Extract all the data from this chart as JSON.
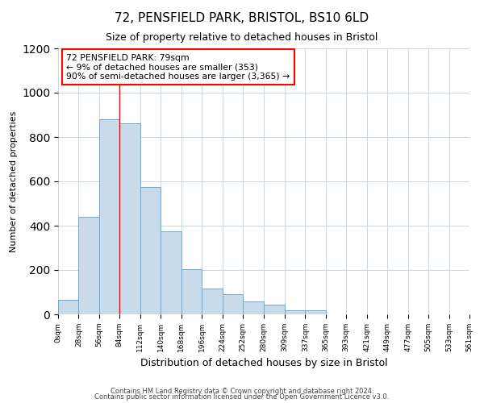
{
  "title": "72, PENSFIELD PARK, BRISTOL, BS10 6LD",
  "subtitle": "Size of property relative to detached houses in Bristol",
  "xlabel": "Distribution of detached houses by size in Bristol",
  "ylabel": "Number of detached properties",
  "bar_color": "#c9daea",
  "bar_edge_color": "#6aaad4",
  "bin_edges": [
    0,
    28,
    56,
    84,
    112,
    140,
    168,
    196,
    224,
    252,
    280,
    309,
    337,
    365,
    393,
    421,
    449,
    477,
    505,
    533,
    561
  ],
  "bin_labels": [
    "0sqm",
    "28sqm",
    "56sqm",
    "84sqm",
    "112sqm",
    "140sqm",
    "168sqm",
    "196sqm",
    "224sqm",
    "252sqm",
    "280sqm",
    "309sqm",
    "337sqm",
    "365sqm",
    "393sqm",
    "421sqm",
    "449sqm",
    "477sqm",
    "505sqm",
    "533sqm",
    "561sqm"
  ],
  "bar_heights": [
    65,
    440,
    880,
    860,
    575,
    375,
    205,
    115,
    90,
    60,
    45,
    20,
    18,
    0,
    0,
    0,
    0,
    0,
    0,
    0
  ],
  "ylim": [
    0,
    1200
  ],
  "yticks": [
    0,
    200,
    400,
    600,
    800,
    1000,
    1200
  ],
  "vline_x": 84,
  "annotation_line1": "72 PENSFIELD PARK: 79sqm",
  "annotation_line2": "← 9% of detached houses are smaller (353)",
  "annotation_line3": "90% of semi-detached houses are larger (3,365) →",
  "footer1": "Contains HM Land Registry data © Crown copyright and database right 2024.",
  "footer2": "Contains public sector information licensed under the Open Government Licence v3.0.",
  "background_color": "#ffffff",
  "grid_color": "#c8d8e4"
}
